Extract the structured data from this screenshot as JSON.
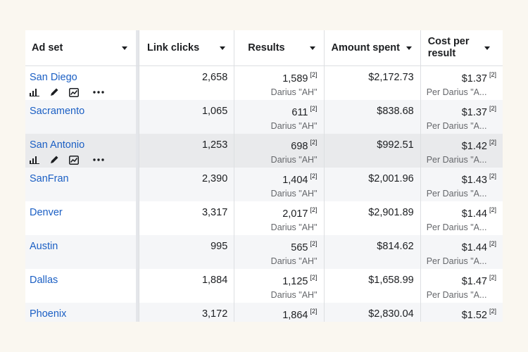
{
  "columns": [
    {
      "label": "Ad set"
    },
    {
      "label": "Link clicks"
    },
    {
      "label": "Results"
    },
    {
      "label": "Amount spent"
    },
    {
      "label": "Cost per result"
    }
  ],
  "rows": [
    {
      "name": "San Diego",
      "clicks": "2,658",
      "results": "1,589",
      "results_note": "[2]",
      "results_sub": "Darius \"AH\"",
      "spent": "$2,172.73",
      "cost": "$1.37",
      "cost_note": "[2]",
      "cost_sub": "Per Darius \"A..."
    },
    {
      "name": "Sacramento",
      "clicks": "1,065",
      "results": "611",
      "results_note": "[2]",
      "results_sub": "Darius \"AH\"",
      "spent": "$838.68",
      "cost": "$1.37",
      "cost_note": "[2]",
      "cost_sub": "Per Darius \"A..."
    },
    {
      "name": "San Antonio",
      "clicks": "1,253",
      "results": "698",
      "results_note": "[2]",
      "results_sub": "Darius \"AH\"",
      "spent": "$992.51",
      "cost": "$1.42",
      "cost_note": "[2]",
      "cost_sub": "Per Darius \"A..."
    },
    {
      "name": "SanFran",
      "clicks": "2,390",
      "results": "1,404",
      "results_note": "[2]",
      "results_sub": "Darius \"AH\"",
      "spent": "$2,001.96",
      "cost": "$1.43",
      "cost_note": "[2]",
      "cost_sub": "Per Darius \"A..."
    },
    {
      "name": "Denver",
      "clicks": "3,317",
      "results": "2,017",
      "results_note": "[2]",
      "results_sub": "Darius \"AH\"",
      "spent": "$2,901.89",
      "cost": "$1.44",
      "cost_note": "[2]",
      "cost_sub": "Per Darius \"A..."
    },
    {
      "name": "Austin",
      "clicks": "995",
      "results": "565",
      "results_note": "[2]",
      "results_sub": "Darius \"AH\"",
      "spent": "$814.62",
      "cost": "$1.44",
      "cost_note": "[2]",
      "cost_sub": "Per Darius \"A..."
    },
    {
      "name": "Dallas",
      "clicks": "1,884",
      "results": "1,125",
      "results_note": "[2]",
      "results_sub": "Darius \"AH\"",
      "spent": "$1,658.99",
      "cost": "$1.47",
      "cost_note": "[2]",
      "cost_sub": "Per Darius \"A..."
    },
    {
      "name": "Phoenix",
      "clicks": "3,172",
      "results": "1,864",
      "results_note": "[2]",
      "results_sub": "",
      "spent": "$2,830.04",
      "cost": "$1.52",
      "cost_note": "[2]",
      "cost_sub": ""
    }
  ],
  "row_icons": [
    "bar-chart-icon",
    "pencil-icon",
    "line-chart-icon",
    "more-icon"
  ],
  "colors": {
    "link": "#1b5fc4",
    "hover_row": "#e9eaec",
    "alt_row": "#f5f6f8"
  }
}
